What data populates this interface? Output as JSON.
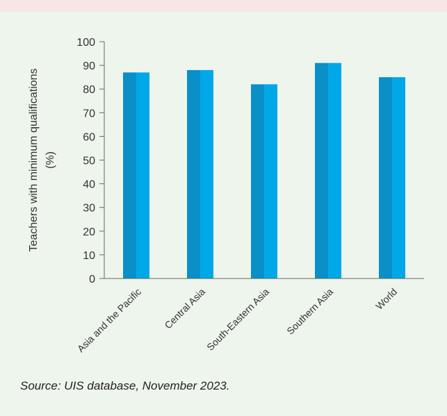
{
  "chart_data": {
    "type": "bar",
    "categories": [
      "Asia and the Pacific",
      "Central Asia",
      "South-Eastern Asia",
      "Southern Asia",
      "World"
    ],
    "values": [
      87,
      88,
      82,
      91,
      85
    ],
    "ylabel_line1": "Teachers with minimum qualifications",
    "ylabel_line2": "(%)",
    "ylim": [
      0,
      100
    ],
    "yticks": [
      0,
      10,
      20,
      30,
      40,
      50,
      60,
      70,
      80,
      90,
      100
    ],
    "grid": false,
    "colors": {
      "bar_dark": "#0a8fc8",
      "bar_light": "#00a8e8",
      "axis": "#666666"
    }
  },
  "source_note": "Source: UIS database, November 2023."
}
